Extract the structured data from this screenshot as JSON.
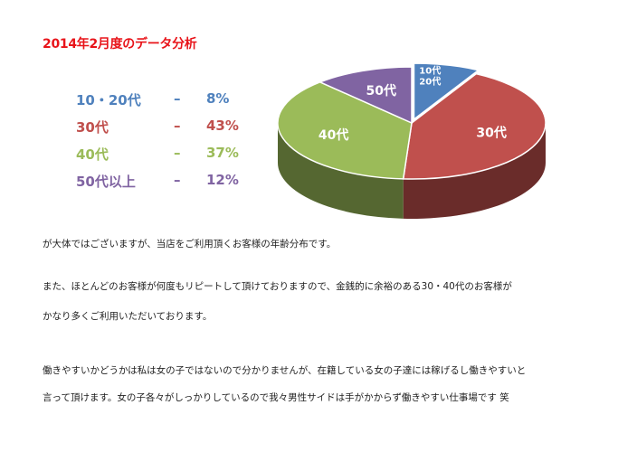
{
  "title": "2014年2月度のデータ分析",
  "legend": [
    {
      "label": "10・20代",
      "dash": "–",
      "pct": "8%",
      "color": "#4f81bd"
    },
    {
      "label": "30代",
      "dash": "–",
      "pct": "43%",
      "color": "#c0504d"
    },
    {
      "label": "40代",
      "dash": "–",
      "pct": "37%",
      "color": "#9bbb59"
    },
    {
      "label": "50代以上",
      "dash": "–",
      "pct": "12%",
      "color": "#8064a2"
    }
  ],
  "chart_data": {
    "type": "pie",
    "title": "2014年2月度のデータ分析",
    "slices": [
      {
        "label": "10代\n20代",
        "value": 8,
        "color": "#4f81bd"
      },
      {
        "label": "30代",
        "value": 43,
        "color": "#c0504d"
      },
      {
        "label": "40代",
        "value": 37,
        "color": "#9bbb59"
      },
      {
        "label": "50代",
        "value": 12,
        "color": "#8064a2"
      }
    ]
  },
  "paragraphs": [
    "が大体ではございますが、当店をご利用頂くお客様の年齢分布です。",
    "また、ほとんどのお客様が何度もリピートして頂けておりますので、金銭的に余裕のある30・40代のお客様が",
    "かなり多くご利用いただいております。",
    "働きやすいかどうかは私は女の子ではないので分かりませんが、在籍している女の子達には稼げるし働きやすいと",
    "言って頂けます。女の子各々がしっかりしているので我々男性サイドは手がかからず働きやすい仕事場です 笑"
  ]
}
